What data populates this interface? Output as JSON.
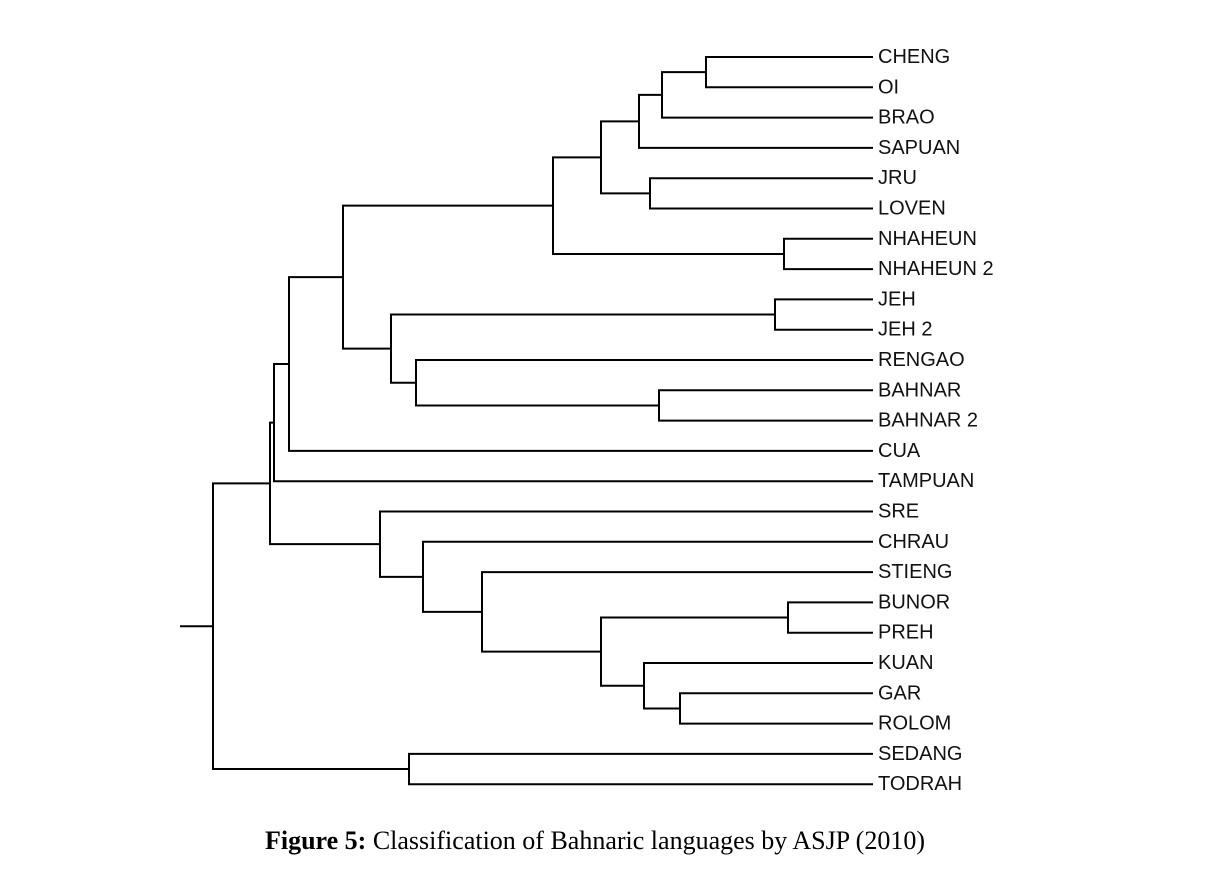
{
  "figure": {
    "caption_label": "Figure 5:",
    "caption_text": " Classification of Bahnaric languages by ASJP (2010)"
  },
  "tree": {
    "leaves": [
      "CHENG",
      "OI",
      "BRAO",
      "SAPUAN",
      "JRU",
      "LOVEN",
      "NHAHEUN",
      "NHAHEUN 2",
      "JEH",
      "JEH 2",
      "RENGAO",
      "BAHNAR",
      "BAHNAR 2",
      "CUA",
      "TAMPUAN",
      "SRE",
      "CHRAU",
      "STIENG",
      "BUNOR",
      "PREH",
      "KUAN",
      "GAR",
      "ROLOM",
      "SEDANG",
      "TODRAH"
    ],
    "clades": [
      [
        "CHENG",
        "OI"
      ],
      [
        [
          "CHENG",
          "OI"
        ],
        "BRAO"
      ],
      [
        [
          [
            "CHENG",
            "OI"
          ],
          "BRAO"
        ],
        "SAPUAN"
      ],
      [
        "JRU",
        "LOVEN"
      ],
      [
        "NHAHEUN",
        "NHAHEUN 2"
      ],
      [
        "JEH",
        "JEH 2"
      ],
      [
        "BAHNAR",
        "BAHNAR 2"
      ],
      [
        "RENGAO",
        [
          "BAHNAR",
          "BAHNAR 2"
        ]
      ],
      [
        "BUNOR",
        "PREH"
      ],
      [
        "GAR",
        "ROLOM"
      ],
      [
        "KUAN",
        [
          "GAR",
          "ROLOM"
        ]
      ],
      [
        "SEDANG",
        "TODRAH"
      ]
    ]
  }
}
